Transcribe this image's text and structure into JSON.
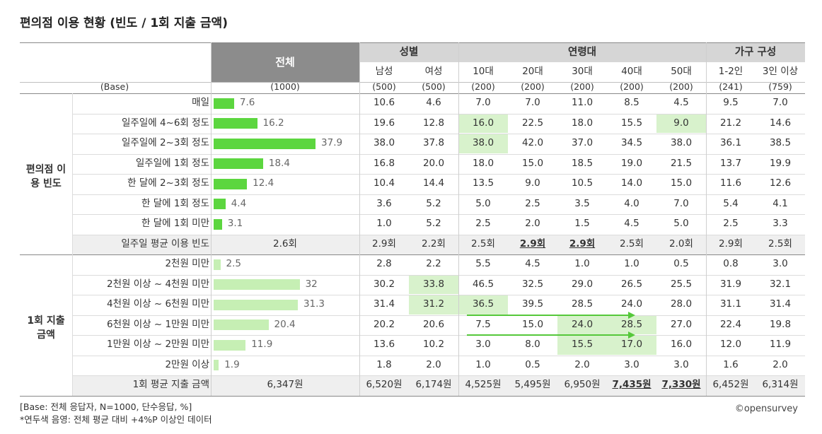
{
  "title": "편의점 이용 현황 (빈도 / 1회 지출 금액)",
  "header": {
    "total": "전체",
    "groups": [
      "성별",
      "연령대",
      "가구 구성"
    ],
    "subcols": [
      "남성",
      "여성",
      "10대",
      "20대",
      "30대",
      "40대",
      "50대",
      "1-2인",
      "3인 이상"
    ],
    "base_label": "(Base)",
    "bases": [
      "(1000)",
      "(500)",
      "(500)",
      "(200)",
      "(200)",
      "(200)",
      "(200)",
      "(200)",
      "(241)",
      "(759)"
    ]
  },
  "sections": [
    {
      "name": "편의점 이용 빈도",
      "rows": [
        {
          "label": "매일",
          "total": 7.6,
          "values": [
            "10.6",
            "4.6",
            "7.0",
            "7.0",
            "11.0",
            "8.5",
            "4.5",
            "9.5",
            "7.0"
          ]
        },
        {
          "label": "일주일에 4~6회 정도",
          "total": 16.2,
          "values": [
            "19.6",
            "12.8",
            "16.0",
            "22.5",
            "18.0",
            "15.5",
            "9.0",
            "21.2",
            "14.6"
          ]
        },
        {
          "label": "일주일에 2~3회 정도",
          "total": 37.9,
          "values": [
            "38.0",
            "37.8",
            "38.0",
            "42.0",
            "37.0",
            "34.5",
            "38.0",
            "36.1",
            "38.5"
          ]
        },
        {
          "label": "일주일에 1회 정도",
          "total": 18.4,
          "values": [
            "16.8",
            "20.0",
            "18.0",
            "15.0",
            "18.5",
            "19.0",
            "21.5",
            "13.7",
            "19.9"
          ]
        },
        {
          "label": "한 달에 2~3회 정도",
          "total": 12.4,
          "values": [
            "10.4",
            "14.4",
            "13.5",
            "9.0",
            "10.5",
            "14.0",
            "15.0",
            "11.6",
            "12.6"
          ]
        },
        {
          "label": "한 달에 1회 정도",
          "total": 4.4,
          "values": [
            "3.6",
            "5.2",
            "5.0",
            "2.5",
            "3.5",
            "4.0",
            "7.0",
            "5.4",
            "4.1"
          ]
        },
        {
          "label": "한 달에 1회 미만",
          "total": 3.1,
          "values": [
            "1.0",
            "5.2",
            "2.5",
            "2.0",
            "1.5",
            "4.5",
            "5.0",
            "2.5",
            "3.3"
          ]
        }
      ],
      "summary": {
        "label": "일주일 평균 이용 빈도",
        "total": "2.6회",
        "values": [
          "2.9회",
          "2.2회",
          "2.5회",
          "2.9회",
          "2.9회",
          "2.5회",
          "2.0회",
          "2.9회",
          "2.5회"
        ]
      }
    },
    {
      "name": "1회 지출 금액",
      "rows": [
        {
          "label": "2천원 미만",
          "total": 2.5,
          "values": [
            "2.8",
            "2.2",
            "5.5",
            "4.5",
            "1.0",
            "1.0",
            "0.5",
            "0.8",
            "3.0"
          ]
        },
        {
          "label": "2천원 이상 ~ 4천원 미만",
          "total": 32.0,
          "values": [
            "30.2",
            "33.8",
            "46.5",
            "32.5",
            "29.0",
            "26.5",
            "25.5",
            "31.9",
            "32.1"
          ]
        },
        {
          "label": "4천원 이상 ~ 6천원 미만",
          "total": 31.3,
          "values": [
            "31.4",
            "31.2",
            "36.5",
            "39.5",
            "28.5",
            "24.0",
            "28.0",
            "31.1",
            "31.4"
          ]
        },
        {
          "label": "6천원 이상 ~ 1만원 미만",
          "total": 20.4,
          "values": [
            "20.2",
            "20.6",
            "7.5",
            "15.0",
            "24.0",
            "28.5",
            "27.0",
            "22.4",
            "19.8"
          ]
        },
        {
          "label": "1만원 이상 ~ 2만원 미만",
          "total": 11.9,
          "values": [
            "13.6",
            "10.2",
            "3.0",
            "8.0",
            "15.5",
            "17.0",
            "16.0",
            "12.0",
            "11.9"
          ]
        },
        {
          "label": "2만원 이상",
          "total": 1.9,
          "values": [
            "1.8",
            "2.0",
            "1.0",
            "0.5",
            "2.0",
            "3.0",
            "3.0",
            "1.6",
            "2.0"
          ]
        }
      ],
      "summary": {
        "label": "1회 평균 지출 금액",
        "total": "6,347원",
        "values": [
          "6,520원",
          "6,174원",
          "4,525원",
          "5,495원",
          "6,950원",
          "7,435원",
          "7,330원",
          "6,452원",
          "6,314원"
        ]
      }
    }
  ],
  "highlights": [
    [
      0,
      1,
      3
    ],
    [
      0,
      2,
      3
    ],
    [
      0,
      1,
      7
    ],
    [
      1,
      1,
      2
    ],
    [
      1,
      2,
      2
    ],
    [
      1,
      2,
      3
    ],
    [
      1,
      3,
      5
    ],
    [
      1,
      3,
      6
    ],
    [
      1,
      4,
      5
    ],
    [
      1,
      4,
      6
    ]
  ],
  "emphasized_summary": [
    [
      0,
      3
    ],
    [
      0,
      4
    ],
    [
      1,
      5
    ],
    [
      1,
      6
    ]
  ],
  "colors": {
    "bar_freq": "#5cd63f",
    "bar_spend": "#c6efb4",
    "highlight": "#d8f2cc",
    "header_total": "#8c8c8c",
    "header_group": "#d6d6d6",
    "summary_row": "#efefef",
    "arrow": "#55c83a"
  },
  "footnotes": [
    "[Base: 전체 응답자, N=1000, 단수응답, %]",
    "*연두색 음영: 전체 평균 대비 +4%P 이상인 데이터"
  ],
  "logo": "©opensurvey",
  "chart_data": {
    "type": "table",
    "title": "편의점 이용 현황 (빈도 / 1회 지출 금액)",
    "columns": [
      "전체",
      "남성",
      "여성",
      "10대",
      "20대",
      "30대",
      "40대",
      "50대",
      "1-2인",
      "3인 이상"
    ],
    "frequency_total": {
      "categories": [
        "매일",
        "일주일에 4~6회 정도",
        "일주일에 2~3회 정도",
        "일주일에 1회 정도",
        "한 달에 2~3회 정도",
        "한 달에 1회 정도",
        "한 달에 1회 미만"
      ],
      "values": [
        7.6,
        16.2,
        37.9,
        18.4,
        12.4,
        4.4,
        3.1
      ]
    },
    "spend_total": {
      "categories": [
        "2천원 미만",
        "2천원 이상 ~ 4천원 미만",
        "4천원 이상 ~ 6천원 미만",
        "6천원 이상 ~ 1만원 미만",
        "1만원 이상 ~ 2만원 미만",
        "2만원 이상"
      ],
      "values": [
        2.5,
        32.0,
        31.3,
        20.4,
        11.9,
        1.9
      ]
    }
  }
}
